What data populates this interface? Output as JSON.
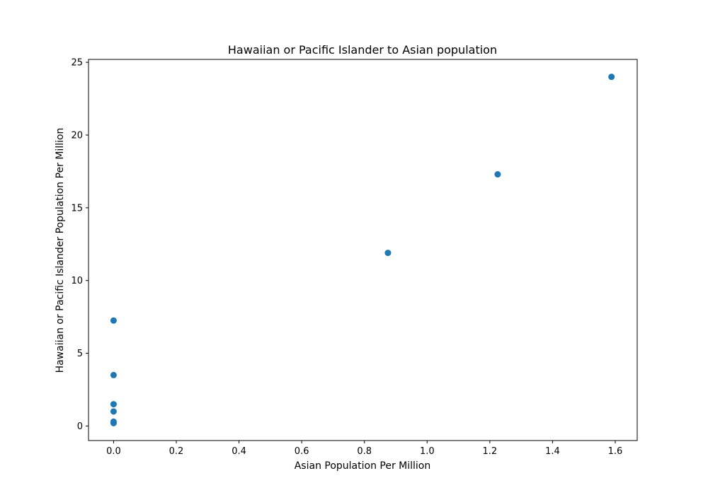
{
  "chart_data": {
    "type": "scatter",
    "title": "Hawaiian or Pacific Islander to Asian population",
    "xlabel": "Asian Population Per Million",
    "ylabel": "Hawaiian or Pacific Islander Population Per Million",
    "xlim": [
      -0.08,
      1.67
    ],
    "ylim": [
      -1.0,
      25.2
    ],
    "xticks": [
      0.0,
      0.2,
      0.4,
      0.6,
      0.8,
      1.0,
      1.2,
      1.4,
      1.6
    ],
    "xtick_labels": [
      "0.0",
      "0.2",
      "0.4",
      "0.6",
      "0.8",
      "1.0",
      "1.2",
      "1.4",
      "1.6"
    ],
    "yticks": [
      0,
      5,
      10,
      15,
      20,
      25
    ],
    "ytick_labels": [
      "0",
      "5",
      "10",
      "15",
      "20",
      "25"
    ],
    "grid": false,
    "marker_color": "#1f77b4",
    "points": [
      {
        "x": 0.0,
        "y": 7.25
      },
      {
        "x": 0.0,
        "y": 3.5
      },
      {
        "x": 0.0,
        "y": 1.5
      },
      {
        "x": 0.0,
        "y": 1.0
      },
      {
        "x": 0.0,
        "y": 0.3
      },
      {
        "x": 0.0,
        "y": 0.2
      },
      {
        "x": 0.875,
        "y": 11.9
      },
      {
        "x": 1.225,
        "y": 17.3
      },
      {
        "x": 1.588,
        "y": 24.0
      }
    ]
  }
}
